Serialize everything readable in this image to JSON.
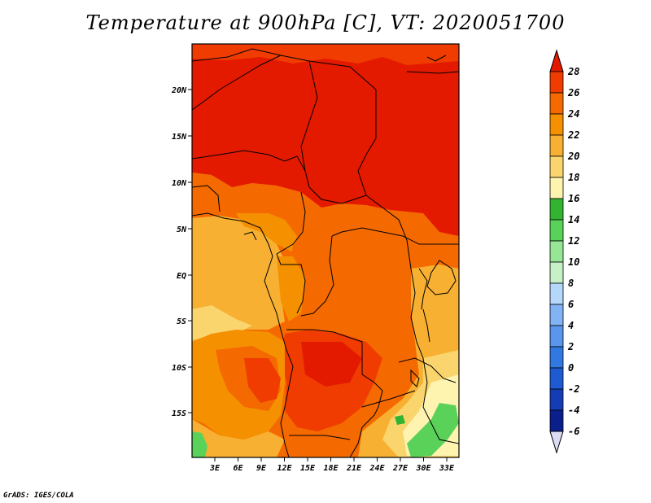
{
  "title": "Temperature at 900hPa [C], VT: 2020051700",
  "credit": "GrADS: IGES/COLA",
  "map": {
    "lat_labels": [
      "20N",
      "15N",
      "10N",
      "5N",
      "EQ",
      "5S",
      "10S",
      "15S"
    ],
    "lon_labels": [
      "3E",
      "6E",
      "9E",
      "12E",
      "15E",
      "18E",
      "21E",
      "24E",
      "27E",
      "30E",
      "33E"
    ]
  },
  "legend": {
    "labels": [
      "28",
      "26",
      "24",
      "22",
      "20",
      "18",
      "16",
      "14",
      "12",
      "10",
      "8",
      "6",
      "4",
      "2",
      "0",
      "-2",
      "-4",
      "-6"
    ],
    "colors": [
      "#e31a00",
      "#f03c00",
      "#f46a00",
      "#f59000",
      "#f7b032",
      "#fad56e",
      "#fff3b0",
      "#32b432",
      "#5ad25a",
      "#96e696",
      "#c8f0c8",
      "#b4d7fa",
      "#82b4f5",
      "#5a96eb",
      "#3278e1",
      "#1e5ad2",
      "#143cb4",
      "#0a1e8c",
      "#000a64",
      "#dcdcf5"
    ]
  }
}
